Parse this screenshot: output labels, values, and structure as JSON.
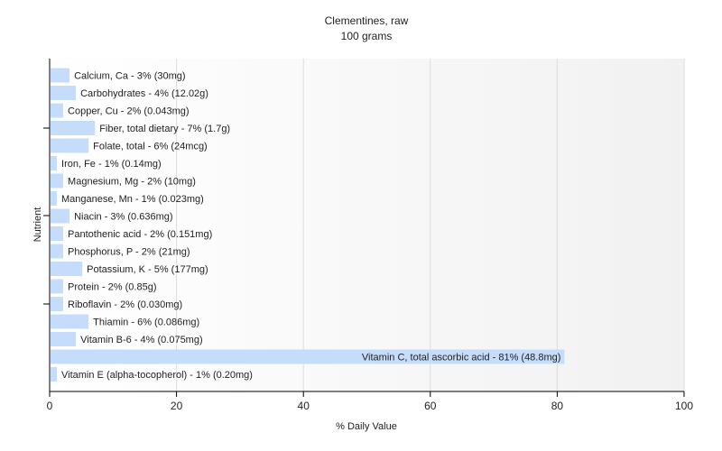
{
  "chart_data": {
    "type": "bar",
    "orientation": "horizontal",
    "title": "Clementines, raw",
    "subtitle": "100 grams",
    "xlabel": "% Daily Value",
    "ylabel": "Nutrient",
    "xlim": [
      0,
      100
    ],
    "xticks": [
      0,
      20,
      40,
      60,
      80,
      100
    ],
    "grid": true,
    "bar_color": "#c6dcfb",
    "categories": [
      "Calcium, Ca",
      "Carbohydrates",
      "Copper, Cu",
      "Fiber, total dietary",
      "Folate, total",
      "Iron, Fe",
      "Magnesium, Mg",
      "Manganese, Mn",
      "Niacin",
      "Pantothenic acid",
      "Phosphorus, P",
      "Potassium, K",
      "Protein",
      "Riboflavin",
      "Thiamin",
      "Vitamin B-6",
      "Vitamin C, total ascorbic acid",
      "Vitamin E (alpha-tocopherol)"
    ],
    "values": [
      3,
      4,
      2,
      7,
      6,
      1,
      2,
      1,
      3,
      2,
      2,
      5,
      2,
      2,
      6,
      4,
      81,
      1
    ],
    "labels": [
      "Calcium, Ca - 3% (30mg)",
      "Carbohydrates - 4% (12.02g)",
      "Copper, Cu - 2% (0.043mg)",
      "Fiber, total dietary - 7% (1.7g)",
      "Folate, total - 6% (24mcg)",
      "Iron, Fe - 1% (0.14mg)",
      "Magnesium, Mg - 2% (10mg)",
      "Manganese, Mn - 1% (0.023mg)",
      "Niacin - 3% (0.636mg)",
      "Pantothenic acid - 2% (0.151mg)",
      "Phosphorus, P - 2% (21mg)",
      "Potassium, K - 5% (177mg)",
      "Protein - 2% (0.85g)",
      "Riboflavin - 2% (0.030mg)",
      "Thiamin - 6% (0.086mg)",
      "Vitamin B-6 - 4% (0.075mg)",
      "Vitamin C, total ascorbic acid - 81% (48.8mg)",
      "Vitamin E (alpha-tocopherol) - 1% (0.20mg)"
    ]
  }
}
